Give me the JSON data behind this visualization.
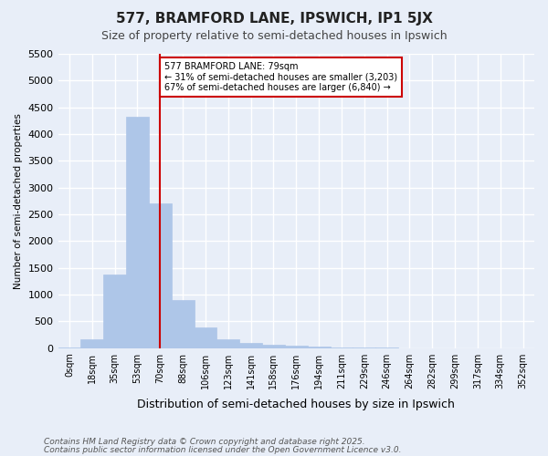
{
  "title": "577, BRAMFORD LANE, IPSWICH, IP1 5JX",
  "subtitle": "Size of property relative to semi-detached houses in Ipswich",
  "xlabel": "Distribution of semi-detached houses by size in Ipswich",
  "ylabel": "Number of semi-detached properties",
  "bar_color": "#aec6e8",
  "background_color": "#e8eef8",
  "grid_color": "#ffffff",
  "annotation_line1": "577 BRAMFORD LANE: 79sqm",
  "annotation_line2": "← 31% of semi-detached houses are smaller (3,203)",
  "annotation_line3": "67% of semi-detached houses are larger (6,840) →",
  "property_bin": 4,
  "bin_labels": [
    "0sqm",
    "18sqm",
    "35sqm",
    "53sqm",
    "70sqm",
    "88sqm",
    "106sqm",
    "123sqm",
    "141sqm",
    "158sqm",
    "176sqm",
    "194sqm",
    "211sqm",
    "229sqm",
    "246sqm",
    "264sqm",
    "282sqm",
    "299sqm",
    "317sqm",
    "334sqm",
    "352sqm"
  ],
  "counts": [
    5,
    170,
    1380,
    4320,
    2700,
    900,
    380,
    160,
    100,
    65,
    50,
    30,
    18,
    8,
    3,
    2,
    1,
    1,
    0,
    0,
    0
  ],
  "ylim": [
    0,
    5500
  ],
  "yticks": [
    0,
    500,
    1000,
    1500,
    2000,
    2500,
    3000,
    3500,
    4000,
    4500,
    5000,
    5500
  ],
  "footer_line1": "Contains HM Land Registry data © Crown copyright and database right 2025.",
  "footer_line2": "Contains public sector information licensed under the Open Government Licence v3.0."
}
